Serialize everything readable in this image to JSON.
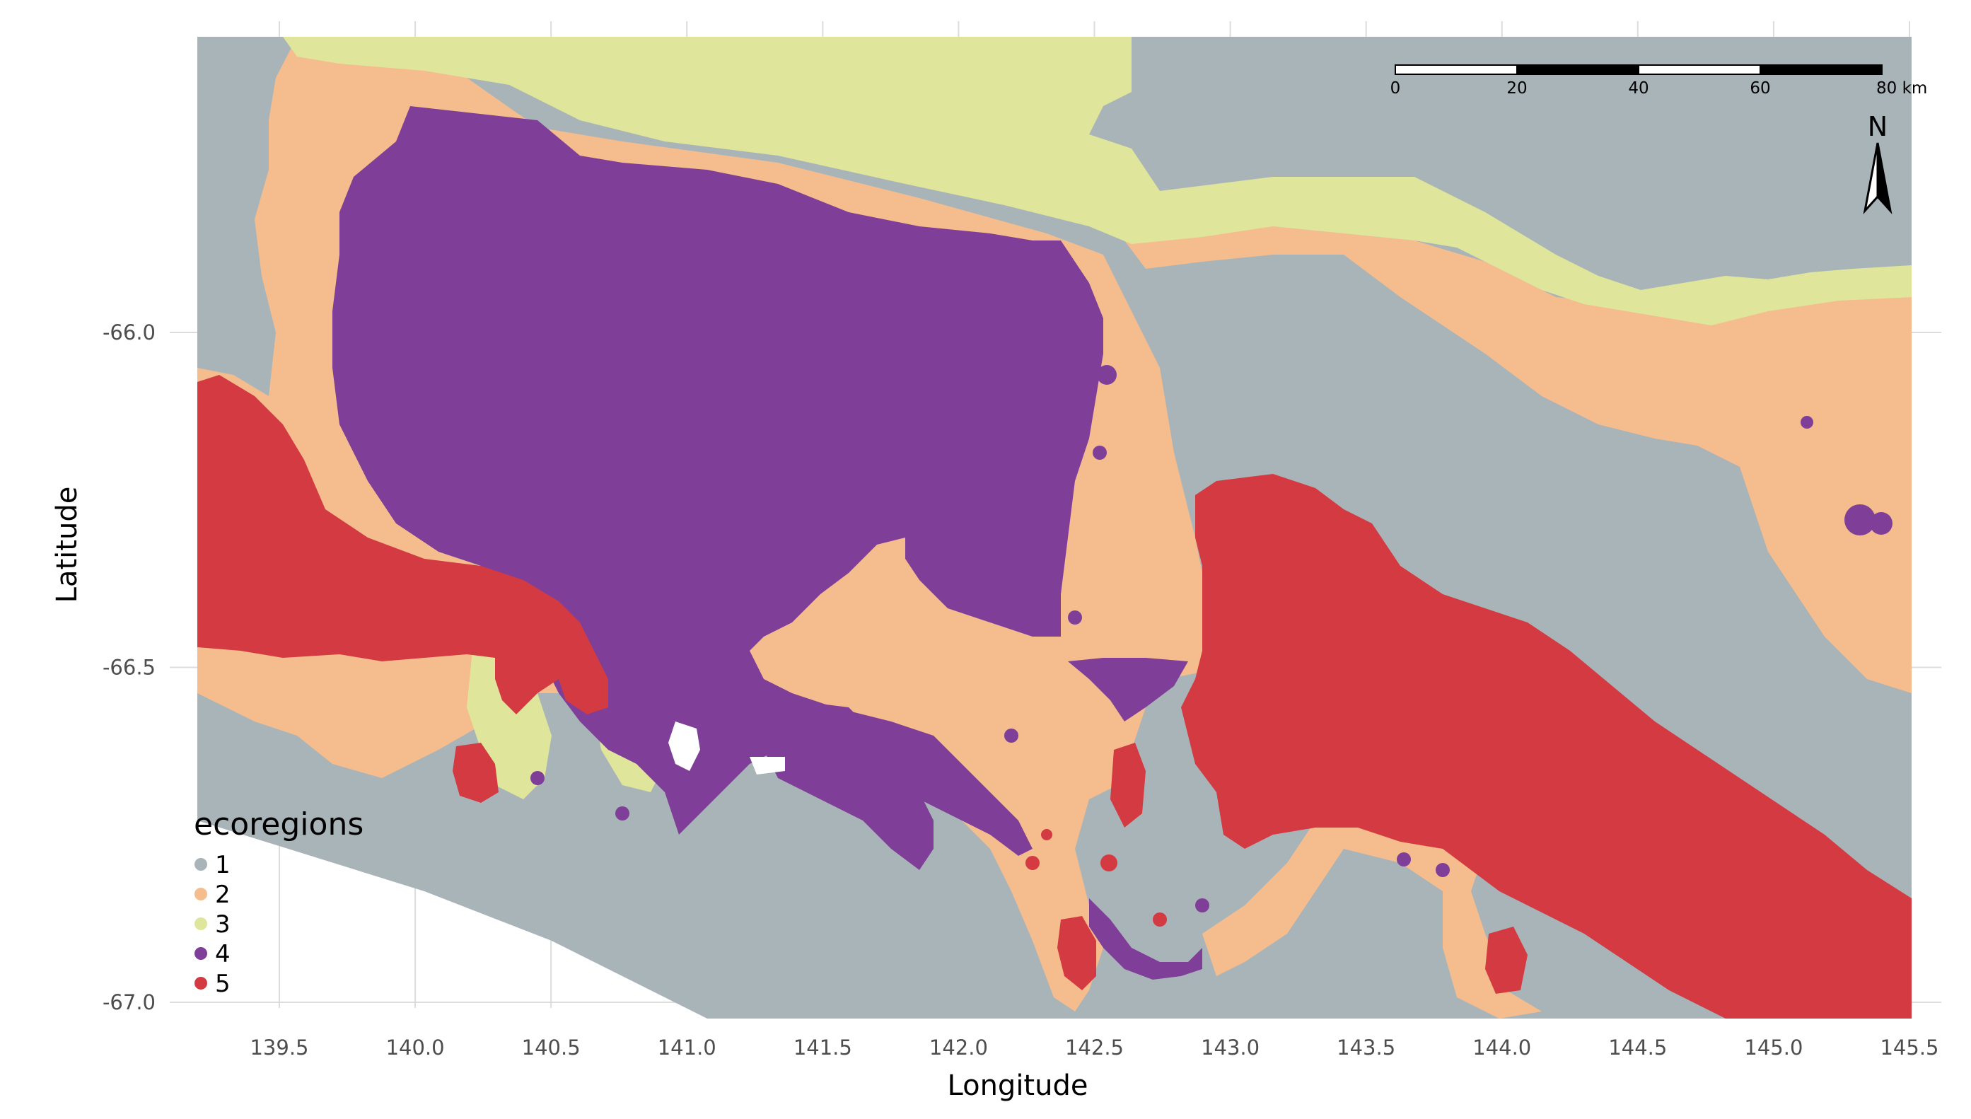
{
  "chart_data": {
    "type": "map",
    "xlabel": "Longitude",
    "ylabel": "Latitude",
    "xlim": [
      139.2,
      145.55
    ],
    "ylim": [
      -67.0,
      -65.55
    ],
    "x_ticks": [
      "139.5",
      "140.0",
      "140.5",
      "141.0",
      "141.5",
      "142.0",
      "142.5",
      "143.0",
      "143.5",
      "144.0",
      "144.5",
      "145.0",
      "145.5"
    ],
    "x_tick_values": [
      139.5,
      140.0,
      140.5,
      141.0,
      141.5,
      142.0,
      142.5,
      143.0,
      143.5,
      144.0,
      144.5,
      145.0,
      145.5
    ],
    "y_ticks": [
      "-66.0",
      "-66.5",
      "-67.0"
    ],
    "y_tick_values": [
      -66.0,
      -66.5,
      -67.0
    ],
    "grid": true,
    "legend": {
      "title": "ecoregions",
      "position": "bottom-left",
      "entries": [
        {
          "label": "1",
          "color": "#a9b4b8"
        },
        {
          "label": "2",
          "color": "#f5bd8e"
        },
        {
          "label": "3",
          "color": "#dfe69b"
        },
        {
          "label": "4",
          "color": "#7f3f98"
        },
        {
          "label": "5",
          "color": "#d43a41"
        }
      ]
    },
    "scale_bar": {
      "labels": [
        "0",
        "20",
        "40",
        "60",
        "80 km"
      ],
      "max_km": 80
    },
    "north_arrow": {
      "label": "N"
    }
  },
  "colors": {
    "background": "#ffffff",
    "grid": "#dcdcdc",
    "ecoregion_1": "#a9b4b8",
    "ecoregion_2": "#f5bd8e",
    "ecoregion_3": "#dfe69b",
    "ecoregion_4": "#7f3f98",
    "ecoregion_5": "#d43a41"
  }
}
